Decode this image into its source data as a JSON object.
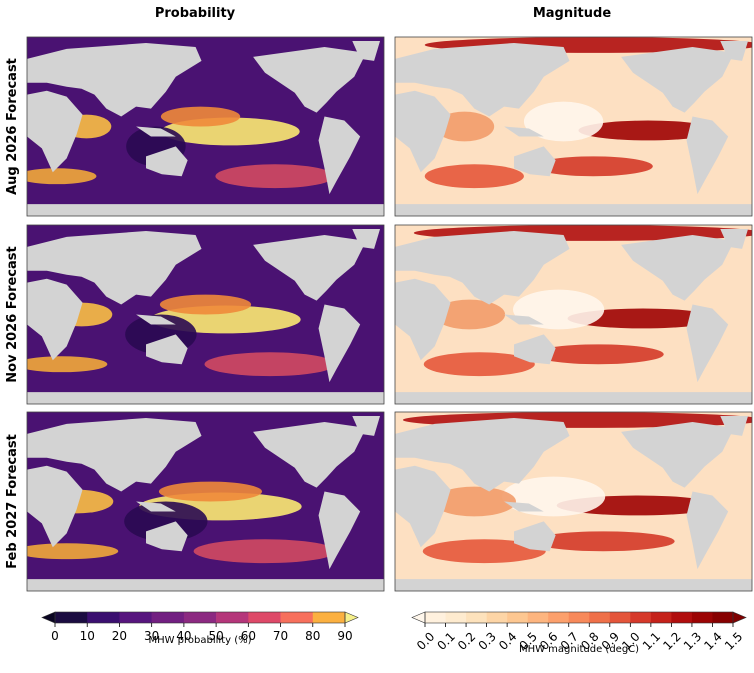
{
  "columns": [
    "Probability",
    "Magnitude"
  ],
  "rows": [
    "Aug 2026 Forecast",
    "Nov 2026 Forecast",
    "Feb 2027 Forecast"
  ],
  "colorbars": [
    {
      "label": "MHW probability (%)",
      "lim": [
        0,
        90
      ],
      "ticks": [
        0,
        10,
        20,
        30,
        40,
        50,
        60,
        70,
        80,
        90
      ],
      "under": "#0a0522",
      "over": "#f6f08a",
      "colors": [
        "#1b0c41",
        "#3b0f70",
        "#57157e",
        "#721f81",
        "#8c2981",
        "#b5367a",
        "#de4968",
        "#f7705c",
        "#fbb040"
      ]
    },
    {
      "label": "MHW magnitude (degC)",
      "lim": [
        0,
        1.5
      ],
      "ticks": [
        {
          "value": 0,
          "label": "0.0"
        },
        0.1,
        0.2,
        0.3,
        0.4,
        0.5,
        0.6,
        0.7,
        0.8,
        0.9,
        {
          "value": 1,
          "label": "1.0"
        },
        1.1,
        1.2,
        1.3,
        1.4,
        1.5
      ],
      "under": "#fff7ec",
      "over": "#7f0000",
      "colors": [
        "#fff1de",
        "#feebcf",
        "#fde2bc",
        "#fdd5a6",
        "#fdc791",
        "#fdb57f",
        "#fca06c",
        "#f7895a",
        "#ef7049",
        "#e4553a",
        "#d6392a",
        "#c5221a",
        "#b10e0e",
        "#9c0404",
        "#870000"
      ]
    }
  ]
}
